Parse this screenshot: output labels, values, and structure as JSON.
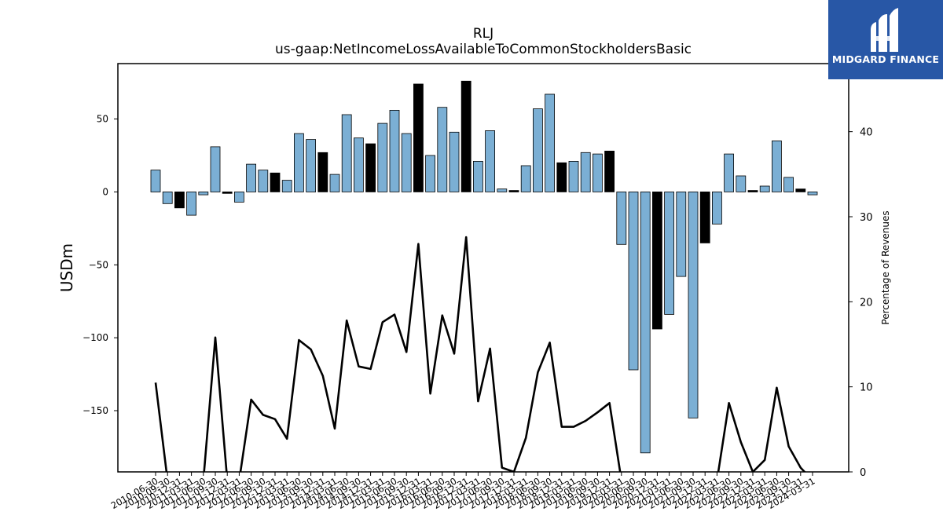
{
  "brand": {
    "name": "MIDGARD FINANCE",
    "bg_color": "#2857a6"
  },
  "chart_data": {
    "type": "bar",
    "title": "RLJ",
    "subtitle": "us-gaap:NetIncomeLossAvailableToCommonStockholdersBasic",
    "ylabel": "USDm",
    "y2label": "Percentage of Revenues",
    "ylim": [
      -192,
      88
    ],
    "y2lim": [
      0,
      48
    ],
    "yticks": [
      50,
      0,
      -50,
      -100,
      -150
    ],
    "y2ticks": [
      0,
      10,
      20,
      30,
      40
    ],
    "colors": {
      "bar": "#7bafd4",
      "bar_highlight": "#000000",
      "line": "#000000"
    },
    "categories": [
      "2010-06-30",
      "2010-09-30",
      "2010-12-31",
      "2011-03-31",
      "2011-06-30",
      "2011-09-30",
      "2011-12-31",
      "2012-03-31",
      "2012-06-30",
      "2012-09-30",
      "2012-12-31",
      "2013-03-31",
      "2013-06-30",
      "2013-09-30",
      "2013-12-31",
      "2014-03-31",
      "2014-06-30",
      "2014-09-30",
      "2014-12-31",
      "2015-03-31",
      "2015-06-30",
      "2015-09-30",
      "2015-12-31",
      "2016-03-31",
      "2016-06-30",
      "2016-09-30",
      "2016-12-31",
      "2017-03-31",
      "2017-06-30",
      "2017-09-30",
      "2017-12-31",
      "2018-03-31",
      "2018-06-30",
      "2018-09-30",
      "2018-12-31",
      "2019-03-31",
      "2019-06-30",
      "2019-09-30",
      "2019-12-31",
      "2020-03-31",
      "2020-06-30",
      "2020-09-30",
      "2020-12-31",
      "2021-03-31",
      "2021-06-30",
      "2021-09-30",
      "2021-12-31",
      "2022-03-31",
      "2022-06-30",
      "2022-09-30",
      "2022-12-31",
      "2023-03-31",
      "2023-06-30",
      "2023-09-30",
      "2023-12-31",
      "2024-03-31"
    ],
    "tick_labels": [
      "2010-06-30",
      "2010-09-30",
      "2010-12-31",
      "2011-03-31",
      "2011-06-30",
      "2011-09-30",
      "2011-12-31",
      "2012-03-31",
      "2012-06-30",
      "2012-09-30",
      "2012-12-31",
      "2013-03-31",
      "2013-06-30",
      "2013-09-30",
      "2013-12-31",
      "2014-03-31",
      "2014-06-30",
      "2014-09-30",
      "2014-12-31",
      "2015-03-31",
      "2015-06-30",
      "2015-09-30",
      "2015-12-31",
      "2016-03-31",
      "2016-06-30",
      "2016-09-30",
      "2016-12-31",
      "2017-03-31",
      "2017-06-30",
      "2017-09-30",
      "2017-12-31",
      "2018-03-31",
      "2018-06-30",
      "2018-09-30",
      "2018-12-31",
      "2019-03-31",
      "2019-06-30",
      "2019-09-30",
      "2019-12-31",
      "2020-03-31",
      "2020-06-30",
      "2020-09-30",
      "2020-12-31",
      "2021-03-31",
      "2021-06-30",
      "2021-09-30",
      "2021-12-31",
      "2022-03-31",
      "2022-06-30",
      "2022-09-30",
      "2022-12-31",
      "2023-03-31",
      "2023-06-30",
      "2023-09-30",
      "2023-12-31",
      "2024-03-31"
    ],
    "series": [
      {
        "values": [
          15,
          -8,
          -11,
          -16,
          -2,
          31,
          -1,
          -7,
          19,
          15,
          13,
          8,
          40,
          36,
          27,
          12,
          53,
          37,
          33,
          47,
          56,
          40,
          74,
          25,
          58,
          41,
          76,
          21,
          42,
          2,
          1,
          18,
          57,
          67,
          20,
          21,
          27,
          26,
          28,
          -36,
          -122,
          -179,
          -94,
          -84,
          -58,
          -155,
          -35,
          -22,
          26,
          11,
          1,
          4,
          35,
          10,
          2,
          -2
        ],
        "highlight": [
          false,
          false,
          true,
          false,
          false,
          false,
          true,
          false,
          false,
          false,
          true,
          false,
          false,
          false,
          true,
          false,
          false,
          false,
          true,
          false,
          false,
          false,
          true,
          false,
          false,
          false,
          true,
          false,
          false,
          false,
          true,
          false,
          false,
          false,
          true,
          false,
          false,
          false,
          true,
          false,
          false,
          false,
          true,
          false,
          false,
          false,
          true,
          false,
          false,
          false,
          true,
          false,
          false,
          false,
          true,
          false
        ]
      },
      {
        "axis": "right",
        "values": [
          10.5,
          -1,
          -1,
          -1,
          -1,
          15.8,
          -1,
          -1,
          8.5,
          6.7,
          6.2,
          3.9,
          15.5,
          14.4,
          11.3,
          5.1,
          17.8,
          12.4,
          12.1,
          17.6,
          18.5,
          14.1,
          26.8,
          9.2,
          18.4,
          13.9,
          27.6,
          8.3,
          14.5,
          0.5,
          0,
          4.0,
          11.7,
          15.2,
          5.3,
          5.3,
          6.0,
          7.0,
          8.1,
          -1,
          -1,
          -1,
          -1,
          -1,
          -1,
          -1,
          -1,
          -1,
          8.1,
          3.5,
          0,
          1.4,
          9.9,
          3.0,
          0.5,
          -1
        ]
      }
    ]
  }
}
